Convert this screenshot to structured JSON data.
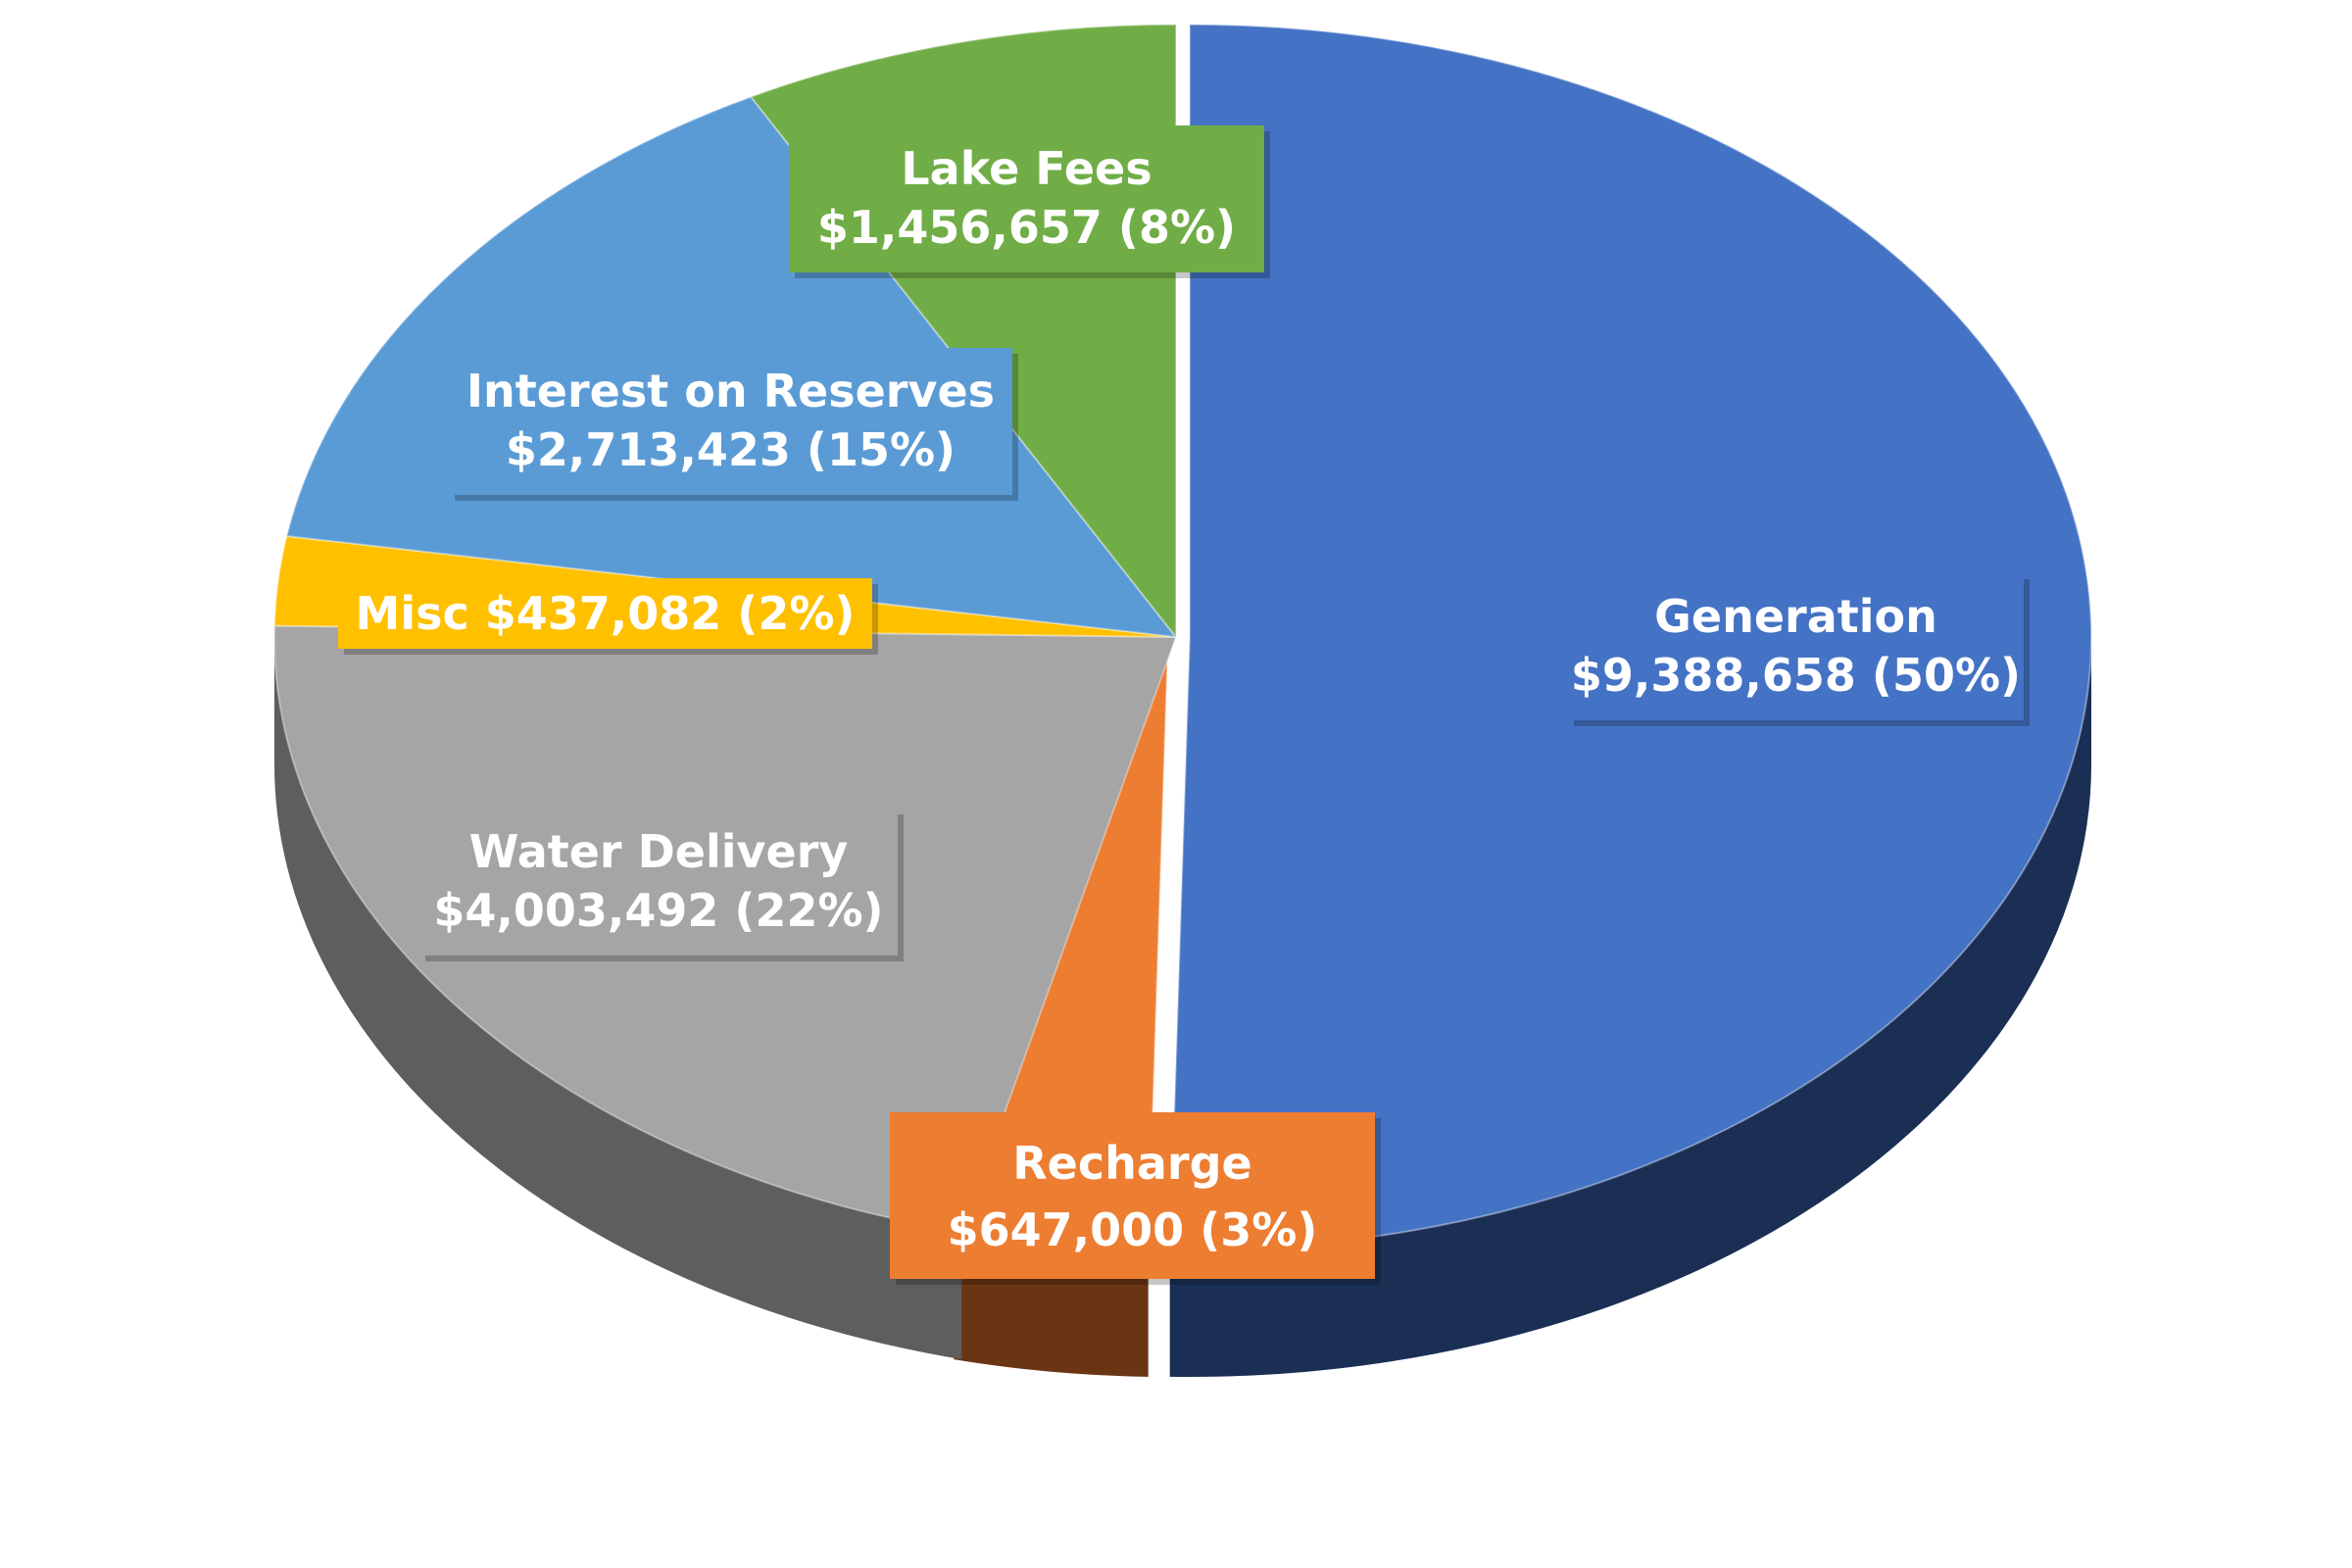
{
  "chart_data": {
    "type": "pie",
    "style": "3d-exploded",
    "slices": [
      {
        "label": "Generation",
        "value": 9388658,
        "value_text": "$9,388,658",
        "percent": 50,
        "percent_text": "(50%)",
        "color": "#4472C4",
        "side_color": "#1B2F55"
      },
      {
        "label": "Recharge",
        "value": 647000,
        "value_text": "$647,000",
        "percent": 3,
        "percent_text": "(3%)",
        "color": "#ED7D31",
        "side_color": "#6A3512"
      },
      {
        "label": "Water Delivery",
        "value": 4003492,
        "value_text": "$4,003,492",
        "percent": 22,
        "percent_text": "(22%)",
        "color": "#A5A5A5",
        "side_color": "#5E5E5E"
      },
      {
        "label": "Misc",
        "value": 437082,
        "value_text": "$437,082",
        "percent": 2,
        "percent_text": "(2%)",
        "color": "#FFC000",
        "side_color": "#8A6800"
      },
      {
        "label": "Interest on Reserves",
        "value": 2713423,
        "value_text": "$2,713,423",
        "percent": 15,
        "percent_text": "(15%)",
        "color": "#5B9BD5",
        "side_color": "#2E5A86"
      },
      {
        "label": "Lake Fees",
        "value": 1456657,
        "value_text": "$1,456,657",
        "percent": 8,
        "percent_text": "(8%)",
        "color": "#70AD47",
        "side_color": "#3D6526"
      }
    ],
    "title": "",
    "legend": "none",
    "data_labels": "inside-boxes"
  }
}
